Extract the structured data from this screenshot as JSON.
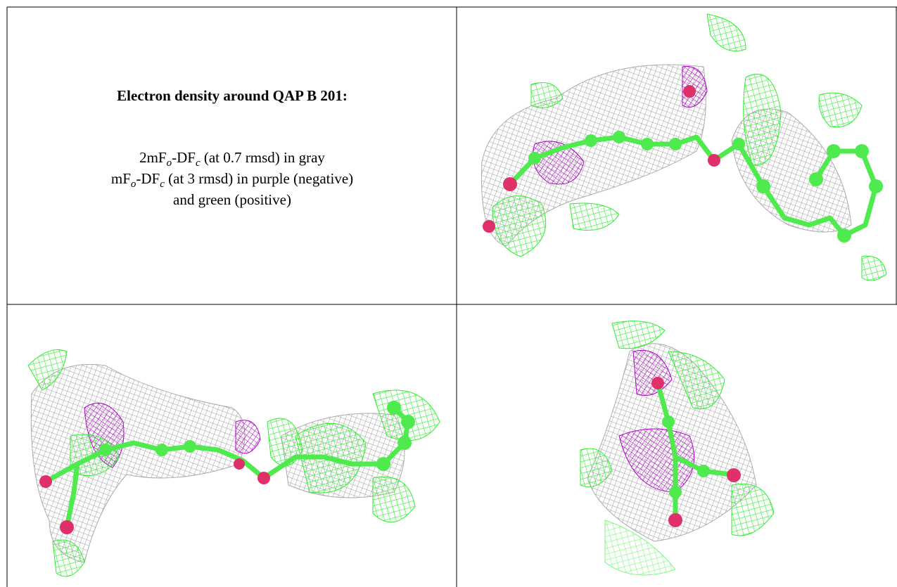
{
  "caption": {
    "title": "Electron density around QAP B 201:",
    "lines": [
      [
        "2mF",
        "o",
        "-DF",
        "c",
        " (at 0.7 rmsd) in gray"
      ],
      [
        "mF",
        "o",
        "-DF",
        "c",
        " (at 3 rmsd) in purple (negative)"
      ],
      [
        "and green (positive)"
      ]
    ]
  }
}
